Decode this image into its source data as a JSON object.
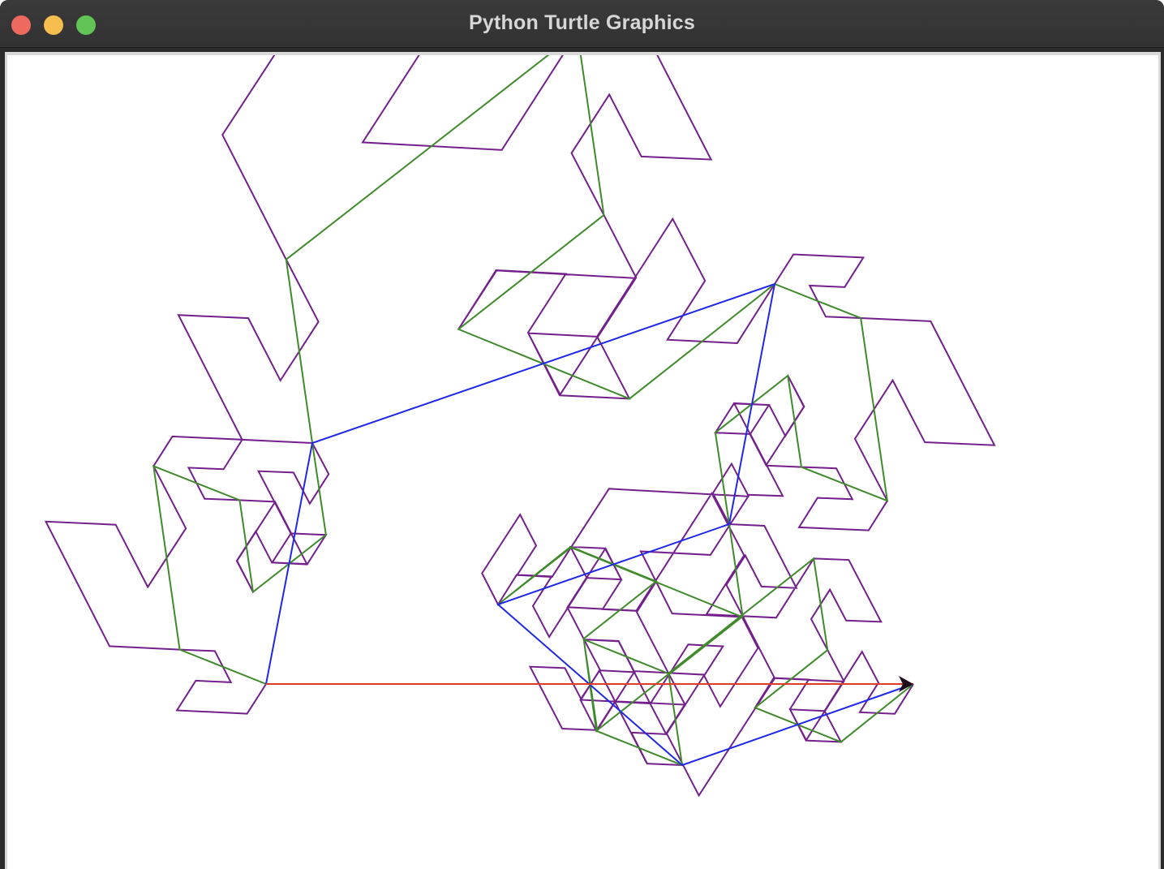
{
  "window": {
    "title": "Python Turtle Graphics"
  },
  "traffic_lights": {
    "close": "close-button",
    "minimize": "minimize-button",
    "zoom": "zoom-button"
  },
  "colors": {
    "red_line": "#e03c2a",
    "blue_line": "#1f28e6",
    "green_line": "#3f8a2a",
    "purple_line": "#74208c",
    "turtle": "#1a0a1a"
  },
  "turtle_cursor": {
    "shape": "arrow",
    "heading": "east"
  }
}
